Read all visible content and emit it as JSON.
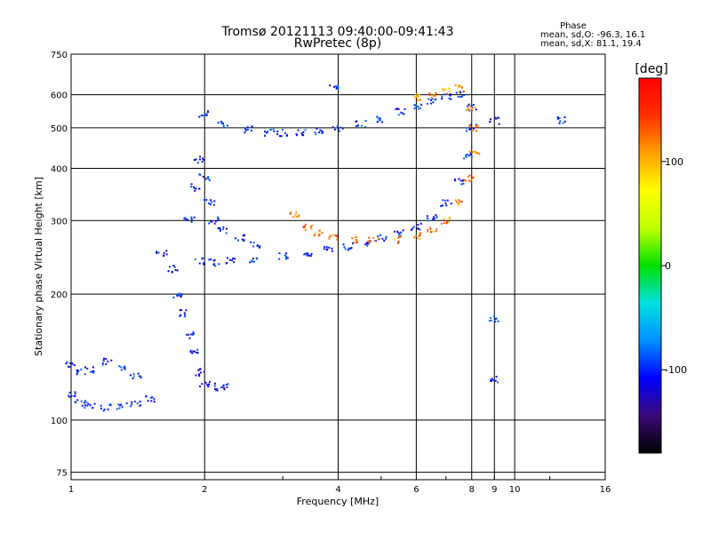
{
  "chart_data": {
    "type": "scatter",
    "title": "Tromsø 20121113 09:40:00-09:41:43",
    "subtitle": "RwPretec (8p)",
    "xlabel": "Frequency [MHz]",
    "ylabel": "Stationary phase Virtual Height [km]",
    "x_scale": "log",
    "y_scale": "log",
    "xlim": [
      1,
      16
    ],
    "ylim": [
      72,
      750
    ],
    "x_ticks": [
      1,
      2,
      4,
      6,
      8,
      9,
      10,
      16
    ],
    "y_ticks": [
      75,
      100,
      200,
      300,
      400,
      500,
      600,
      750
    ],
    "grid": true,
    "stats": {
      "header": "Phase",
      "line_o": "mean, sd,O: -96.3, 16.1",
      "line_x": "mean, sd,X:  81.1, 19.4"
    },
    "colorbar": {
      "label": "[deg]",
      "ticks": [
        100,
        0,
        -100
      ],
      "range": [
        -180,
        180
      ],
      "colors": [
        "#000000",
        "#3a0a78",
        "#0000ff",
        "#0090ff",
        "#00e0e0",
        "#00e000",
        "#c0ff00",
        "#ffff00",
        "#ffa000",
        "#ff3000",
        "#ff0000"
      ]
    },
    "traces": [
      {
        "name": "",
        "mode": "O",
        "phase": -100,
        "points": [
          [
            2.0,
            540
          ],
          [
            2.2,
            510
          ],
          [
            2.5,
            495
          ],
          [
            2.8,
            488
          ],
          [
            3.0,
            485
          ],
          [
            3.3,
            488
          ],
          [
            3.6,
            492
          ],
          [
            4.0,
            498
          ],
          [
            4.5,
            510
          ],
          [
            5.0,
            525
          ],
          [
            5.5,
            545
          ],
          [
            6.0,
            565
          ],
          [
            6.5,
            580
          ],
          [
            7.0,
            590
          ],
          [
            7.5,
            600
          ]
        ]
      },
      {
        "name": "",
        "mode": "O",
        "phase": -100,
        "points": [
          [
            1.95,
            240
          ],
          [
            2.1,
            238
          ],
          [
            2.3,
            240
          ],
          [
            2.6,
            243
          ],
          [
            3.0,
            246
          ],
          [
            3.4,
            250
          ],
          [
            3.8,
            255
          ],
          [
            4.2,
            260
          ],
          [
            4.6,
            266
          ],
          [
            5.0,
            272
          ],
          [
            5.5,
            280
          ],
          [
            6.0,
            290
          ],
          [
            6.5,
            305
          ],
          [
            7.0,
            330
          ],
          [
            7.5,
            370
          ],
          [
            7.8,
            430
          ],
          [
            8.0,
            500
          ],
          [
            8.05,
            560
          ]
        ]
      },
      {
        "name": "",
        "mode": "O",
        "phase": -100,
        "points": [
          [
            1.85,
            300
          ],
          [
            1.9,
            360
          ],
          [
            1.95,
            420
          ],
          [
            2.0,
            380
          ],
          [
            2.05,
            330
          ],
          [
            2.1,
            300
          ],
          [
            2.2,
            285
          ],
          [
            2.4,
            272
          ],
          [
            2.6,
            262
          ]
        ]
      },
      {
        "name": "",
        "mode": "O",
        "phase": -110,
        "points": [
          [
            1.6,
            250
          ],
          [
            1.7,
            230
          ],
          [
            1.75,
            200
          ],
          [
            1.8,
            180
          ],
          [
            1.85,
            160
          ],
          [
            1.9,
            145
          ],
          [
            1.95,
            130
          ],
          [
            2.0,
            122
          ],
          [
            2.1,
            120
          ],
          [
            2.2,
            120
          ]
        ]
      },
      {
        "name": "",
        "mode": "O",
        "phase": -100,
        "points": [
          [
            1.0,
            115
          ],
          [
            1.05,
            110
          ],
          [
            1.1,
            108
          ],
          [
            1.2,
            107
          ],
          [
            1.3,
            108
          ],
          [
            1.4,
            110
          ],
          [
            1.5,
            112
          ]
        ]
      },
      {
        "name": "",
        "mode": "O",
        "phase": -100,
        "points": [
          [
            1.0,
            135
          ],
          [
            1.05,
            130
          ],
          [
            1.1,
            132
          ],
          [
            1.2,
            138
          ],
          [
            1.3,
            132
          ],
          [
            1.4,
            128
          ]
        ]
      },
      {
        "name": "",
        "mode": "X",
        "phase": 120,
        "points": [
          [
            3.2,
            310
          ],
          [
            3.4,
            290
          ],
          [
            3.6,
            280
          ],
          [
            3.9,
            275
          ],
          [
            4.3,
            270
          ],
          [
            4.8,
            268
          ],
          [
            5.4,
            270
          ],
          [
            6.0,
            275
          ],
          [
            6.5,
            285
          ],
          [
            7.0,
            300
          ],
          [
            7.5,
            330
          ],
          [
            7.9,
            380
          ],
          [
            8.1,
            440
          ],
          [
            8.1,
            500
          ],
          [
            8.0,
            560
          ]
        ]
      },
      {
        "name": "",
        "mode": "X",
        "phase": 110,
        "points": [
          [
            6.0,
            590
          ],
          [
            6.5,
            600
          ],
          [
            7.0,
            610
          ],
          [
            7.5,
            620
          ]
        ]
      },
      {
        "name": "",
        "mode": "misc",
        "phase": -100,
        "points": [
          [
            9.0,
            520
          ],
          [
            12.8,
            520
          ],
          [
            9.0,
            175
          ],
          [
            9.0,
            125
          ],
          [
            3.9,
            620
          ]
        ]
      }
    ]
  }
}
